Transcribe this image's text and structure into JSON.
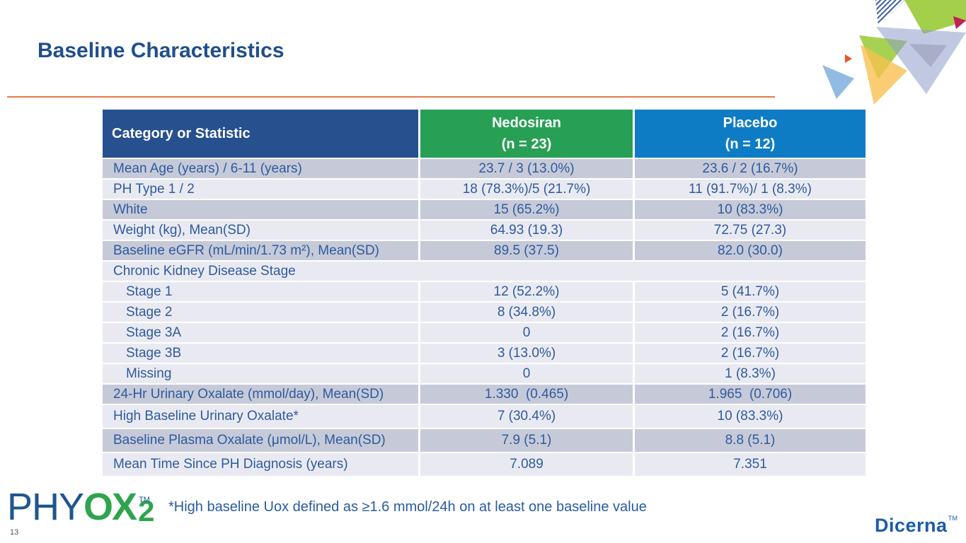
{
  "slide": {
    "title": "Baseline Characteristics",
    "slide_number": "13",
    "footnote": "*High baseline Uox defined as ≥1.6 mmol/24h on at least one baseline value"
  },
  "logos": {
    "phyox_phy": "PHY",
    "phyox_ox": "OX",
    "phyox_tm": "TM",
    "phyox_two": "2",
    "dicerna": "Dicerna",
    "dicerna_tm": "TM"
  },
  "colors": {
    "title_blue": "#1f4e8c",
    "divider_orange": "#e8794a",
    "header_navy": "#27508f",
    "header_green": "#27a055",
    "header_blue": "#0e7cc5",
    "row_dark": "#c6cad8",
    "row_light": "#e9eaf1",
    "table_text_blue": "#2e5a9e",
    "phyox_green": "#2fa44e",
    "dicerna_blue": "#1a5ca8"
  },
  "table": {
    "header": {
      "category": "Category or Statistic",
      "nedosiran_line1": "Nedosiran",
      "nedosiran_line2": "(n = 23)",
      "placebo_line1": "Placebo",
      "placebo_line2": "(n = 12)"
    },
    "rows": [
      {
        "label": "Mean Age (years) / 6-11 (years)",
        "nedosiran": "23.7 / 3 (13.0%)",
        "placebo": "23.6 / 2 (16.7%)",
        "shade": "dark",
        "indent": false,
        "span": false,
        "tall": false
      },
      {
        "label": "PH Type 1 / 2",
        "nedosiran": "18 (78.3%)/5 (21.7%)",
        "placebo": "11 (91.7%)/ 1 (8.3%)",
        "shade": "light",
        "indent": false,
        "span": false,
        "tall": false
      },
      {
        "label": "White",
        "nedosiran": "15 (65.2%)",
        "placebo": "10 (83.3%)",
        "shade": "dark",
        "indent": false,
        "span": false,
        "tall": false
      },
      {
        "label": "Weight (kg), Mean(SD)",
        "nedosiran": "64.93 (19.3)",
        "placebo": "72.75 (27.3)",
        "shade": "light",
        "indent": false,
        "span": false,
        "tall": false
      },
      {
        "label": "Baseline eGFR (mL/min/1.73 m²), Mean(SD)",
        "nedosiran": "89.5 (37.5)",
        "placebo": "82.0 (30.0)",
        "shade": "dark",
        "indent": false,
        "span": false,
        "tall": false
      },
      {
        "label": "Chronic Kidney Disease Stage",
        "nedosiran": "",
        "placebo": "",
        "shade": "light",
        "indent": false,
        "span": true,
        "tall": false
      },
      {
        "label": "Stage 1",
        "nedosiran": "12 (52.2%)",
        "placebo": "5 (41.7%)",
        "shade": "light",
        "indent": true,
        "span": false,
        "tall": false
      },
      {
        "label": "Stage 2",
        "nedosiran": "8 (34.8%)",
        "placebo": "2 (16.7%)",
        "shade": "light",
        "indent": true,
        "span": false,
        "tall": false
      },
      {
        "label": "Stage 3A",
        "nedosiran": "0",
        "placebo": "2 (16.7%)",
        "shade": "light",
        "indent": true,
        "span": false,
        "tall": false
      },
      {
        "label": "Stage 3B",
        "nedosiran": "3 (13.0%)",
        "placebo": "2 (16.7%)",
        "shade": "light",
        "indent": true,
        "span": false,
        "tall": false
      },
      {
        "label": "Missing",
        "nedosiran": "0",
        "placebo": "1 (8.3%)",
        "shade": "light",
        "indent": true,
        "span": false,
        "tall": false
      },
      {
        "label": "24-Hr Urinary Oxalate (mmol/day), Mean(SD)",
        "nedosiran": "1.330  (0.465)",
        "placebo": "1.965  (0.706)",
        "shade": "dark",
        "indent": false,
        "span": false,
        "tall": false
      },
      {
        "label": "High Baseline Urinary Oxalate*",
        "nedosiran": "7 (30.4%)",
        "placebo": "10 (83.3%)",
        "shade": "light",
        "indent": false,
        "span": false,
        "tall": true
      },
      {
        "label": "Baseline Plasma Oxalate (μmol/L), Mean(SD)",
        "nedosiran": "7.9 (5.1)",
        "placebo": "8.8 (5.1)",
        "shade": "dark",
        "indent": false,
        "span": false,
        "tall": true
      },
      {
        "label": "Mean Time Since PH Diagnosis (years)",
        "nedosiran": "7.089",
        "placebo": "7.351",
        "shade": "light",
        "indent": false,
        "span": false,
        "tall": true
      }
    ]
  }
}
